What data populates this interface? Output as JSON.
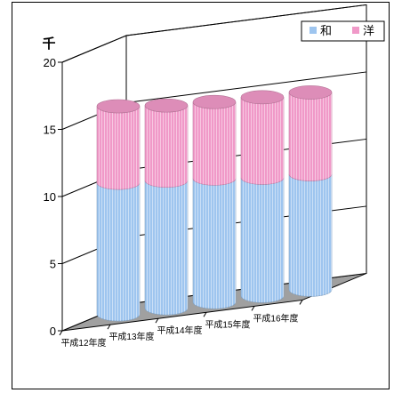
{
  "chart_data": {
    "type": "bar",
    "style": "stacked-3d-cylinder",
    "unit_label": "千",
    "categories": [
      "平成12年度",
      "平成13年度",
      "平成14年度",
      "平成15年度",
      "平成16年度"
    ],
    "series": [
      {
        "name": "和",
        "color": "#9ec5ef",
        "values": [
          9.8,
          9.5,
          9.2,
          8.8,
          8.6
        ]
      },
      {
        "name": "洋",
        "color": "#f099c8",
        "values": [
          5.7,
          5.6,
          5.7,
          6.0,
          6.1
        ]
      }
    ],
    "ylim": [
      0,
      20
    ],
    "yticks": [
      0,
      5,
      10,
      15,
      20
    ],
    "grid": true,
    "legend_position": "top-right"
  }
}
